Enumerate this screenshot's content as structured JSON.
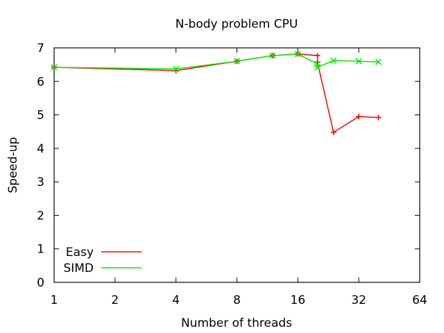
{
  "chart_data": {
    "type": "line",
    "title": "N-body problem CPU",
    "xlabel": "Number of threads",
    "ylabel": "Speed-up",
    "xscale": "log2",
    "xlim": [
      1,
      64
    ],
    "ylim": [
      0,
      7
    ],
    "xticks": [
      "1",
      "2",
      "4",
      "8",
      "16",
      "32",
      "64"
    ],
    "yticks": [
      "0",
      "1",
      "2",
      "3",
      "4",
      "5",
      "6",
      "7"
    ],
    "grid": false,
    "legend_position": "bottom-left",
    "series": [
      {
        "name": "Easy",
        "color": "#ff0000",
        "marker": "plus",
        "x": [
          1,
          4,
          8,
          12,
          16,
          20,
          20,
          24,
          32,
          40
        ],
        "y": [
          6.42,
          6.32,
          6.6,
          6.77,
          6.82,
          6.77,
          6.57,
          4.48,
          4.95,
          4.92
        ]
      },
      {
        "name": "SIMD",
        "color": "#00ee00",
        "marker": "cross",
        "x": [
          1,
          4,
          8,
          12,
          16,
          20,
          20,
          24,
          32,
          40
        ],
        "y": [
          6.42,
          6.37,
          6.6,
          6.77,
          6.82,
          6.52,
          6.42,
          6.62,
          6.6,
          6.58
        ]
      }
    ]
  }
}
